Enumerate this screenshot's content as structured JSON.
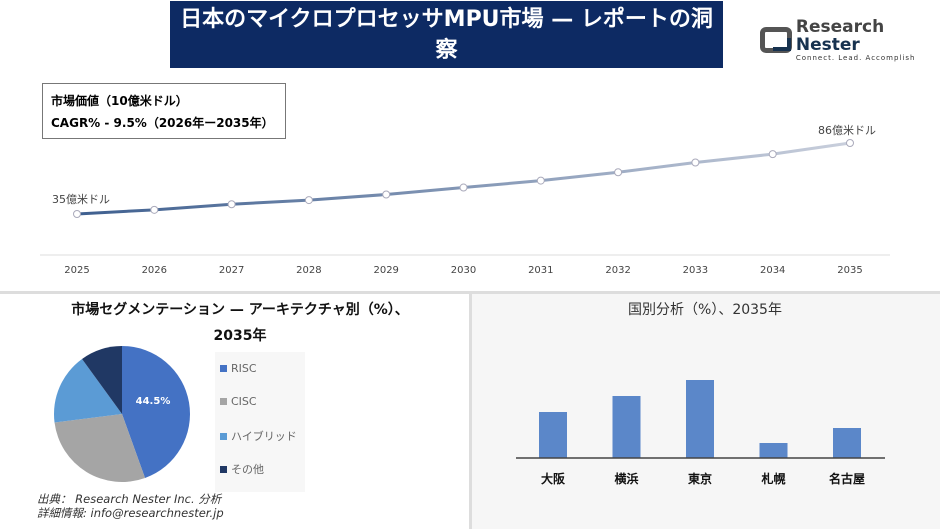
{
  "header": {
    "title": "日本のマイクロプロセッサMPU市場 — レポートの洞察",
    "logo_name": "Research Nester",
    "logo_tagline": "Connect. Lead. Accomplish"
  },
  "info": {
    "line1": "市場価値（10億米ドル）",
    "line2": "CAGR% - 9.5%（2026年ー2035年）"
  },
  "chart_data": [
    {
      "type": "line",
      "x": [
        "2025",
        "2026",
        "2027",
        "2028",
        "2029",
        "2030",
        "2031",
        "2032",
        "2033",
        "2034",
        "2035"
      ],
      "values": [
        3.5,
        3.8,
        4.2,
        4.5,
        4.9,
        5.4,
        5.9,
        6.5,
        7.2,
        7.8,
        8.6
      ],
      "annotations": {
        "start": "35億米ドル",
        "end": "86億米ドル"
      },
      "grid": false,
      "colors": [
        "#3e5f8f",
        "#c9cfdc"
      ]
    },
    {
      "type": "pie",
      "title": "市場セグメンテーション — アーキテクチャ別（%）、2035年",
      "categories": [
        "RISC",
        "CISC",
        "ハイブリッド",
        "その他"
      ],
      "values": [
        44.5,
        28.5,
        17,
        10
      ],
      "data_labels": [
        "44.5%"
      ],
      "colors": [
        "#4472c4",
        "#a5a5a5",
        "#5b9bd5",
        "#203864"
      ],
      "legend": "right"
    },
    {
      "type": "bar",
      "title": "国別分析（%）、2035年",
      "categories": [
        "大阪",
        "横浜",
        "東京",
        "札幌",
        "名古屋"
      ],
      "values": [
        46,
        62,
        78,
        15,
        30
      ],
      "color": "#5b87c9"
    }
  ],
  "source": {
    "line1": "出典： Research Nester Inc. 分析",
    "line2": "詳細情報: info@researchnester.jp"
  }
}
